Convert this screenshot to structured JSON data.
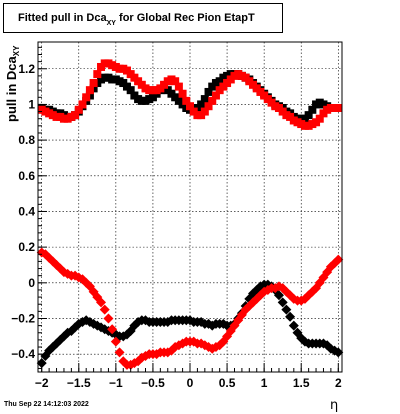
{
  "title": {
    "text_main": "Fitted pull in Dca",
    "text_sub": "XY",
    "text_rest": " for Global Rec Pion EtapT"
  },
  "ylabel": {
    "main": "pull in Dca",
    "sub": "XY"
  },
  "xlabel": "η",
  "timestamp": "Thu Sep 22 14:12:03 2022",
  "chart_data": {
    "type": "scatter",
    "title": "Fitted pull in Dca XY for Global Rec Pion EtapT",
    "xlabel": "η",
    "ylabel": "pull in Dca XY",
    "xlim": [
      -2.05,
      2.05
    ],
    "ylim": [
      -0.5,
      1.35
    ],
    "xticks": [
      -2,
      -1.5,
      -1,
      -0.5,
      0,
      0.5,
      1,
      1.5,
      2
    ],
    "xtick_labels": [
      "−2",
      "−1.5",
      "−1",
      "−0.5",
      "0",
      "0.5",
      "1",
      "1.5",
      "2"
    ],
    "yticks": [
      -0.4,
      -0.2,
      0,
      0.2,
      0.4,
      0.6,
      0.8,
      1,
      1.2
    ],
    "ytick_labels": [
      "−0.4",
      "−0.2",
      "0",
      "0.2",
      "0.4",
      "0.6",
      "0.8",
      "1",
      "1.2"
    ],
    "grid": true,
    "legend": "none",
    "series": [
      {
        "color": "#000000",
        "marker": "square",
        "x": [
          -2.0,
          -1.95,
          -1.9,
          -1.85,
          -1.8,
          -1.75,
          -1.7,
          -1.65,
          -1.6,
          -1.55,
          -1.5,
          -1.45,
          -1.4,
          -1.35,
          -1.3,
          -1.25,
          -1.2,
          -1.15,
          -1.1,
          -1.05,
          -1.0,
          -0.95,
          -0.9,
          -0.85,
          -0.8,
          -0.75,
          -0.7,
          -0.65,
          -0.6,
          -0.55,
          -0.5,
          -0.45,
          -0.4,
          -0.35,
          -0.3,
          -0.25,
          -0.2,
          -0.15,
          -0.1,
          -0.05,
          0.0,
          0.05,
          0.1,
          0.15,
          0.2,
          0.25,
          0.3,
          0.35,
          0.4,
          0.45,
          0.5,
          0.55,
          0.6,
          0.65,
          0.7,
          0.75,
          0.8,
          0.85,
          0.9,
          0.95,
          1.0,
          1.05,
          1.1,
          1.15,
          1.2,
          1.25,
          1.3,
          1.35,
          1.4,
          1.45,
          1.5,
          1.55,
          1.6,
          1.65,
          1.7,
          1.75,
          1.8,
          1.85,
          1.9,
          1.95,
          2.0
        ],
        "y": [
          0.98,
          0.97,
          0.97,
          0.96,
          0.95,
          0.95,
          0.94,
          0.93,
          0.93,
          0.94,
          0.96,
          0.99,
          1.02,
          1.05,
          1.09,
          1.12,
          1.14,
          1.15,
          1.15,
          1.14,
          1.14,
          1.13,
          1.12,
          1.1,
          1.08,
          1.05,
          1.03,
          1.02,
          1.02,
          1.03,
          1.04,
          1.06,
          1.08,
          1.09,
          1.08,
          1.06,
          1.04,
          1.02,
          1.0,
          0.98,
          0.97,
          0.97,
          0.98,
          1.0,
          1.03,
          1.07,
          1.1,
          1.12,
          1.13,
          1.15,
          1.16,
          1.17,
          1.17,
          1.17,
          1.16,
          1.15,
          1.14,
          1.12,
          1.1,
          1.08,
          1.06,
          1.04,
          1.02,
          1.0,
          0.99,
          0.98,
          0.96,
          0.95,
          0.93,
          0.92,
          0.92,
          0.92,
          0.94,
          0.97,
          1.0,
          1.01,
          1.0,
          0.99,
          0.98,
          0.98,
          0.98
        ]
      },
      {
        "color": "#ff0000",
        "marker": "square",
        "x": [
          -2.0,
          -1.95,
          -1.9,
          -1.85,
          -1.8,
          -1.75,
          -1.7,
          -1.65,
          -1.6,
          -1.55,
          -1.5,
          -1.45,
          -1.4,
          -1.35,
          -1.3,
          -1.25,
          -1.2,
          -1.15,
          -1.1,
          -1.05,
          -1.0,
          -0.95,
          -0.9,
          -0.85,
          -0.8,
          -0.75,
          -0.7,
          -0.65,
          -0.6,
          -0.55,
          -0.5,
          -0.45,
          -0.4,
          -0.35,
          -0.3,
          -0.25,
          -0.2,
          -0.15,
          -0.1,
          -0.05,
          0.0,
          0.05,
          0.1,
          0.15,
          0.2,
          0.25,
          0.3,
          0.35,
          0.4,
          0.45,
          0.5,
          0.55,
          0.6,
          0.65,
          0.7,
          0.75,
          0.8,
          0.85,
          0.9,
          0.95,
          1.0,
          1.05,
          1.1,
          1.15,
          1.2,
          1.25,
          1.3,
          1.35,
          1.4,
          1.45,
          1.5,
          1.55,
          1.6,
          1.65,
          1.7,
          1.75,
          1.8,
          1.85,
          1.9,
          1.95,
          2.0
        ],
        "y": [
          0.97,
          0.96,
          0.95,
          0.94,
          0.93,
          0.93,
          0.92,
          0.92,
          0.93,
          0.94,
          0.97,
          1.0,
          1.04,
          1.08,
          1.12,
          1.17,
          1.21,
          1.23,
          1.23,
          1.22,
          1.21,
          1.2,
          1.2,
          1.19,
          1.17,
          1.15,
          1.13,
          1.11,
          1.09,
          1.08,
          1.08,
          1.08,
          1.09,
          1.11,
          1.13,
          1.14,
          1.13,
          1.1,
          1.06,
          1.02,
          0.99,
          0.96,
          0.94,
          0.94,
          0.96,
          0.99,
          1.02,
          1.05,
          1.08,
          1.1,
          1.12,
          1.14,
          1.16,
          1.17,
          1.16,
          1.15,
          1.13,
          1.11,
          1.09,
          1.07,
          1.05,
          1.03,
          1.01,
          0.99,
          0.98,
          0.96,
          0.94,
          0.93,
          0.91,
          0.9,
          0.89,
          0.88,
          0.88,
          0.89,
          0.9,
          0.92,
          0.95,
          0.97,
          0.98,
          0.98,
          0.98
        ]
      },
      {
        "color": "#000000",
        "marker": "diamond",
        "x": [
          -2.0,
          -1.95,
          -1.9,
          -1.85,
          -1.8,
          -1.75,
          -1.7,
          -1.65,
          -1.6,
          -1.55,
          -1.5,
          -1.45,
          -1.4,
          -1.35,
          -1.3,
          -1.25,
          -1.2,
          -1.15,
          -1.1,
          -1.05,
          -1.0,
          -0.95,
          -0.9,
          -0.85,
          -0.8,
          -0.75,
          -0.7,
          -0.65,
          -0.6,
          -0.55,
          -0.5,
          -0.45,
          -0.4,
          -0.35,
          -0.3,
          -0.25,
          -0.2,
          -0.15,
          -0.1,
          -0.05,
          0.0,
          0.05,
          0.1,
          0.15,
          0.2,
          0.25,
          0.3,
          0.35,
          0.4,
          0.45,
          0.5,
          0.55,
          0.6,
          0.65,
          0.7,
          0.75,
          0.8,
          0.85,
          0.9,
          0.95,
          1.0,
          1.05,
          1.1,
          1.15,
          1.2,
          1.25,
          1.3,
          1.35,
          1.4,
          1.45,
          1.5,
          1.55,
          1.6,
          1.65,
          1.7,
          1.75,
          1.8,
          1.85,
          1.9,
          1.95,
          2.0
        ],
        "y": [
          -0.45,
          -0.41,
          -0.38,
          -0.36,
          -0.34,
          -0.32,
          -0.3,
          -0.28,
          -0.27,
          -0.25,
          -0.23,
          -0.22,
          -0.21,
          -0.22,
          -0.23,
          -0.24,
          -0.25,
          -0.26,
          -0.27,
          -0.28,
          -0.29,
          -0.3,
          -0.3,
          -0.29,
          -0.27,
          -0.24,
          -0.22,
          -0.21,
          -0.21,
          -0.22,
          -0.22,
          -0.22,
          -0.22,
          -0.22,
          -0.22,
          -0.21,
          -0.21,
          -0.21,
          -0.21,
          -0.21,
          -0.21,
          -0.22,
          -0.22,
          -0.22,
          -0.23,
          -0.23,
          -0.24,
          -0.23,
          -0.23,
          -0.23,
          -0.24,
          -0.24,
          -0.23,
          -0.2,
          -0.17,
          -0.13,
          -0.09,
          -0.06,
          -0.04,
          -0.02,
          -0.01,
          -0.01,
          -0.02,
          -0.04,
          -0.07,
          -0.11,
          -0.15,
          -0.19,
          -0.24,
          -0.28,
          -0.31,
          -0.33,
          -0.34,
          -0.34,
          -0.34,
          -0.34,
          -0.34,
          -0.35,
          -0.37,
          -0.38,
          -0.39
        ]
      },
      {
        "color": "#ff0000",
        "marker": "diamond",
        "x": [
          -2.0,
          -1.95,
          -1.9,
          -1.85,
          -1.8,
          -1.75,
          -1.7,
          -1.65,
          -1.6,
          -1.55,
          -1.5,
          -1.45,
          -1.4,
          -1.35,
          -1.3,
          -1.25,
          -1.2,
          -1.15,
          -1.1,
          -1.05,
          -1.0,
          -0.95,
          -0.9,
          -0.85,
          -0.8,
          -0.75,
          -0.7,
          -0.65,
          -0.6,
          -0.55,
          -0.5,
          -0.45,
          -0.4,
          -0.35,
          -0.3,
          -0.25,
          -0.2,
          -0.15,
          -0.1,
          -0.05,
          0.0,
          0.05,
          0.1,
          0.15,
          0.2,
          0.25,
          0.3,
          0.35,
          0.4,
          0.45,
          0.5,
          0.55,
          0.6,
          0.65,
          0.7,
          0.75,
          0.8,
          0.85,
          0.9,
          0.95,
          1.0,
          1.05,
          1.1,
          1.15,
          1.2,
          1.25,
          1.3,
          1.35,
          1.4,
          1.45,
          1.5,
          1.55,
          1.6,
          1.65,
          1.7,
          1.75,
          1.8,
          1.85,
          1.9,
          1.95,
          2.0
        ],
        "y": [
          0.17,
          0.16,
          0.14,
          0.12,
          0.1,
          0.08,
          0.06,
          0.05,
          0.04,
          0.04,
          0.03,
          0.02,
          0.0,
          -0.02,
          -0.05,
          -0.08,
          -0.11,
          -0.15,
          -0.2,
          -0.26,
          -0.33,
          -0.39,
          -0.44,
          -0.46,
          -0.46,
          -0.45,
          -0.44,
          -0.42,
          -0.41,
          -0.4,
          -0.4,
          -0.4,
          -0.39,
          -0.39,
          -0.39,
          -0.38,
          -0.36,
          -0.35,
          -0.34,
          -0.33,
          -0.33,
          -0.33,
          -0.34,
          -0.34,
          -0.35,
          -0.36,
          -0.37,
          -0.36,
          -0.35,
          -0.33,
          -0.3,
          -0.27,
          -0.24,
          -0.21,
          -0.18,
          -0.15,
          -0.13,
          -0.11,
          -0.09,
          -0.07,
          -0.05,
          -0.04,
          -0.03,
          -0.03,
          -0.02,
          -0.03,
          -0.05,
          -0.07,
          -0.09,
          -0.1,
          -0.1,
          -0.09,
          -0.07,
          -0.05,
          -0.03,
          0.0,
          0.03,
          0.06,
          0.09,
          0.11,
          0.13
        ]
      }
    ]
  }
}
